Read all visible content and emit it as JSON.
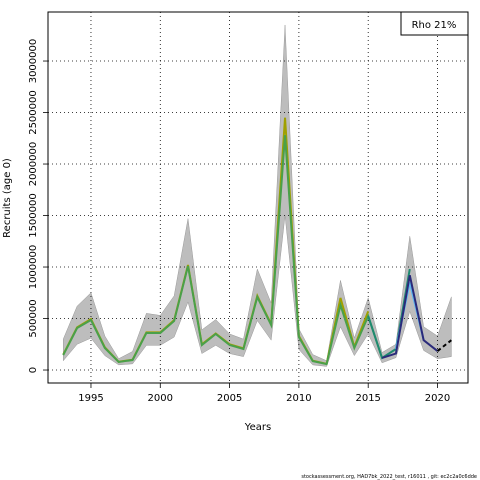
{
  "chart_data": {
    "type": "line",
    "x_label": "Years",
    "y_label": "Recruits (age 0)",
    "annotation": "Rho 21%",
    "footer": "stockassessment.org, HAD7bk_2022_test, r16011 , git: ec2c2a0c6dde",
    "x": [
      1993,
      1994,
      1995,
      1996,
      1997,
      1998,
      1999,
      2000,
      2001,
      2002,
      2003,
      2004,
      2005,
      2006,
      2007,
      2008,
      2009,
      2010,
      2011,
      2012,
      2013,
      2014,
      2015,
      2016,
      2017,
      2018,
      2019,
      2020,
      2021
    ],
    "band": {
      "color": "#bdbdbd",
      "upper": [
        300000,
        620000,
        750000,
        330000,
        110000,
        180000,
        550000,
        530000,
        720000,
        1470000,
        390000,
        490000,
        350000,
        300000,
        980000,
        650000,
        3350000,
        400000,
        150000,
        90000,
        870000,
        310000,
        700000,
        170000,
        250000,
        1300000,
        420000,
        330000,
        710000
      ],
      "lower": [
        90000,
        250000,
        310000,
        140000,
        50000,
        60000,
        240000,
        240000,
        320000,
        660000,
        160000,
        240000,
        160000,
        130000,
        480000,
        290000,
        1500000,
        200000,
        50000,
        35000,
        420000,
        140000,
        350000,
        70000,
        120000,
        570000,
        190000,
        110000,
        130000
      ]
    },
    "series": [
      {
        "color": "#a0a000",
        "values": [
          150000,
          415000,
          495000,
          220000,
          80000,
          100000,
          365000,
          365000,
          485000,
          1020000,
          250000,
          355000,
          250000,
          210000,
          720000,
          445000,
          2450000,
          330000,
          90000,
          60000,
          700000,
          225000,
          570000,
          null,
          null,
          null,
          null,
          null,
          null
        ]
      },
      {
        "color": "#4aa04a",
        "values": [
          145000,
          408000,
          485000,
          214000,
          78000,
          97000,
          360000,
          360000,
          476000,
          1010000,
          243000,
          350000,
          243000,
          204000,
          709000,
          437000,
          2280000,
          320000,
          87000,
          58000,
          631000,
          214000,
          524000,
          117000,
          null,
          null,
          null,
          null,
          null
        ]
      },
      {
        "color": "#1f8a70",
        "values": [
          null,
          null,
          null,
          null,
          null,
          null,
          null,
          null,
          null,
          null,
          null,
          null,
          null,
          null,
          null,
          null,
          null,
          null,
          null,
          null,
          null,
          null,
          524000,
          117000,
          204000,
          980000,
          null,
          null,
          null
        ]
      },
      {
        "color": "#5fb4f0",
        "values": [
          null,
          null,
          null,
          null,
          null,
          null,
          null,
          null,
          null,
          null,
          null,
          null,
          null,
          null,
          null,
          null,
          null,
          null,
          null,
          null,
          null,
          null,
          null,
          null,
          204000,
          850000,
          290000,
          null,
          null
        ]
      },
      {
        "color": "#2a2a7a",
        "values": [
          null,
          null,
          null,
          null,
          null,
          null,
          null,
          null,
          null,
          null,
          null,
          null,
          null,
          null,
          null,
          null,
          null,
          null,
          null,
          null,
          null,
          null,
          null,
          117000,
          160000,
          920000,
          290000,
          184000,
          null
        ]
      },
      {
        "color": "#000000",
        "dashed": true,
        "values": [
          null,
          null,
          null,
          null,
          null,
          null,
          null,
          null,
          null,
          null,
          null,
          null,
          null,
          null,
          null,
          null,
          null,
          null,
          null,
          null,
          null,
          null,
          null,
          null,
          null,
          null,
          null,
          184000,
          290000
        ]
      }
    ],
    "xlim": [
      1991.9,
      2022.2
    ],
    "ylim": [
      -126000,
      3476000
    ],
    "xticks": [
      1995,
      2000,
      2005,
      2010,
      2015,
      2020
    ],
    "yticks": [
      0,
      500000,
      1000000,
      1500000,
      2000000,
      2500000,
      3000000
    ],
    "grid": true
  }
}
